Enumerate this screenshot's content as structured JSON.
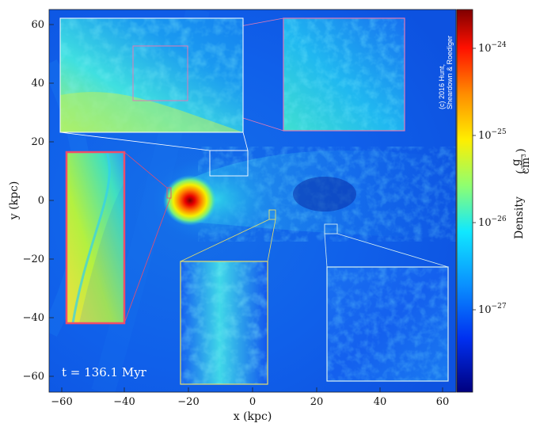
{
  "figure": {
    "time_label": "t = 136.1 Myr",
    "copyright_line1": "(c) 2016 Hunt,",
    "copyright_line2": "Sheardown & Roediger",
    "xlabel": "x  (kpc)",
    "ylabel": "y  (kpc)",
    "x_ticks": [
      "−60",
      "−40",
      "−20",
      "0",
      "20",
      "40",
      "60"
    ],
    "y_ticks": [
      "60",
      "40",
      "20",
      "0",
      "−20",
      "−40",
      "−60"
    ],
    "colorbar": {
      "label": "Density",
      "unit_numerator": "g",
      "unit_denominator": "cm",
      "unit_exponent": "3",
      "ticks": [
        {
          "base": "10",
          "exp": "−24"
        },
        {
          "base": "10",
          "exp": "−25"
        },
        {
          "base": "10",
          "exp": "−26"
        },
        {
          "base": "10",
          "exp": "−27"
        }
      ],
      "colors": [
        "#7f0000",
        "#ff0000",
        "#ff8c00",
        "#ffff00",
        "#7fff7f",
        "#00ffff",
        "#0080ff",
        "#0000ff",
        "#00007f"
      ]
    },
    "inset_colors": {
      "top_left": "#ffffff",
      "top_right": "#e07bb5",
      "left": "#ef4d6a",
      "bottom_mid": "#e8e06a",
      "bottom_right": "#d8f0f0"
    }
  }
}
